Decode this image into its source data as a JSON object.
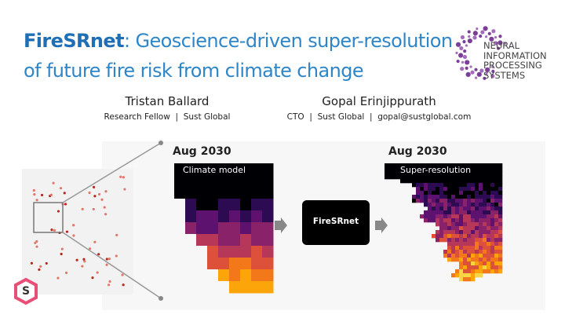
{
  "title": {
    "highlight": "FireSRnet",
    "line1": ": Geoscience-driven super-resolution",
    "line2": "of future fire risk from climate change"
  },
  "logo": {
    "lines": [
      "NEURAL",
      "INFORMATION",
      "PROCESSING",
      "SYSTEMS"
    ],
    "badge": "S"
  },
  "authors": [
    {
      "name": "Tristan Ballard",
      "role": "Research Fellow  |  Sust Global"
    },
    {
      "name": "Gopal Erinjippurath",
      "role": "CTO  |  Sust Global  |  gopal@sustglobal.com"
    }
  ],
  "figure": {
    "left_label": "Aug 2030",
    "left_caption": "Climate model",
    "model": "FireSRnet",
    "right_label": "Aug 2030",
    "right_caption": "Super-resolution"
  }
}
